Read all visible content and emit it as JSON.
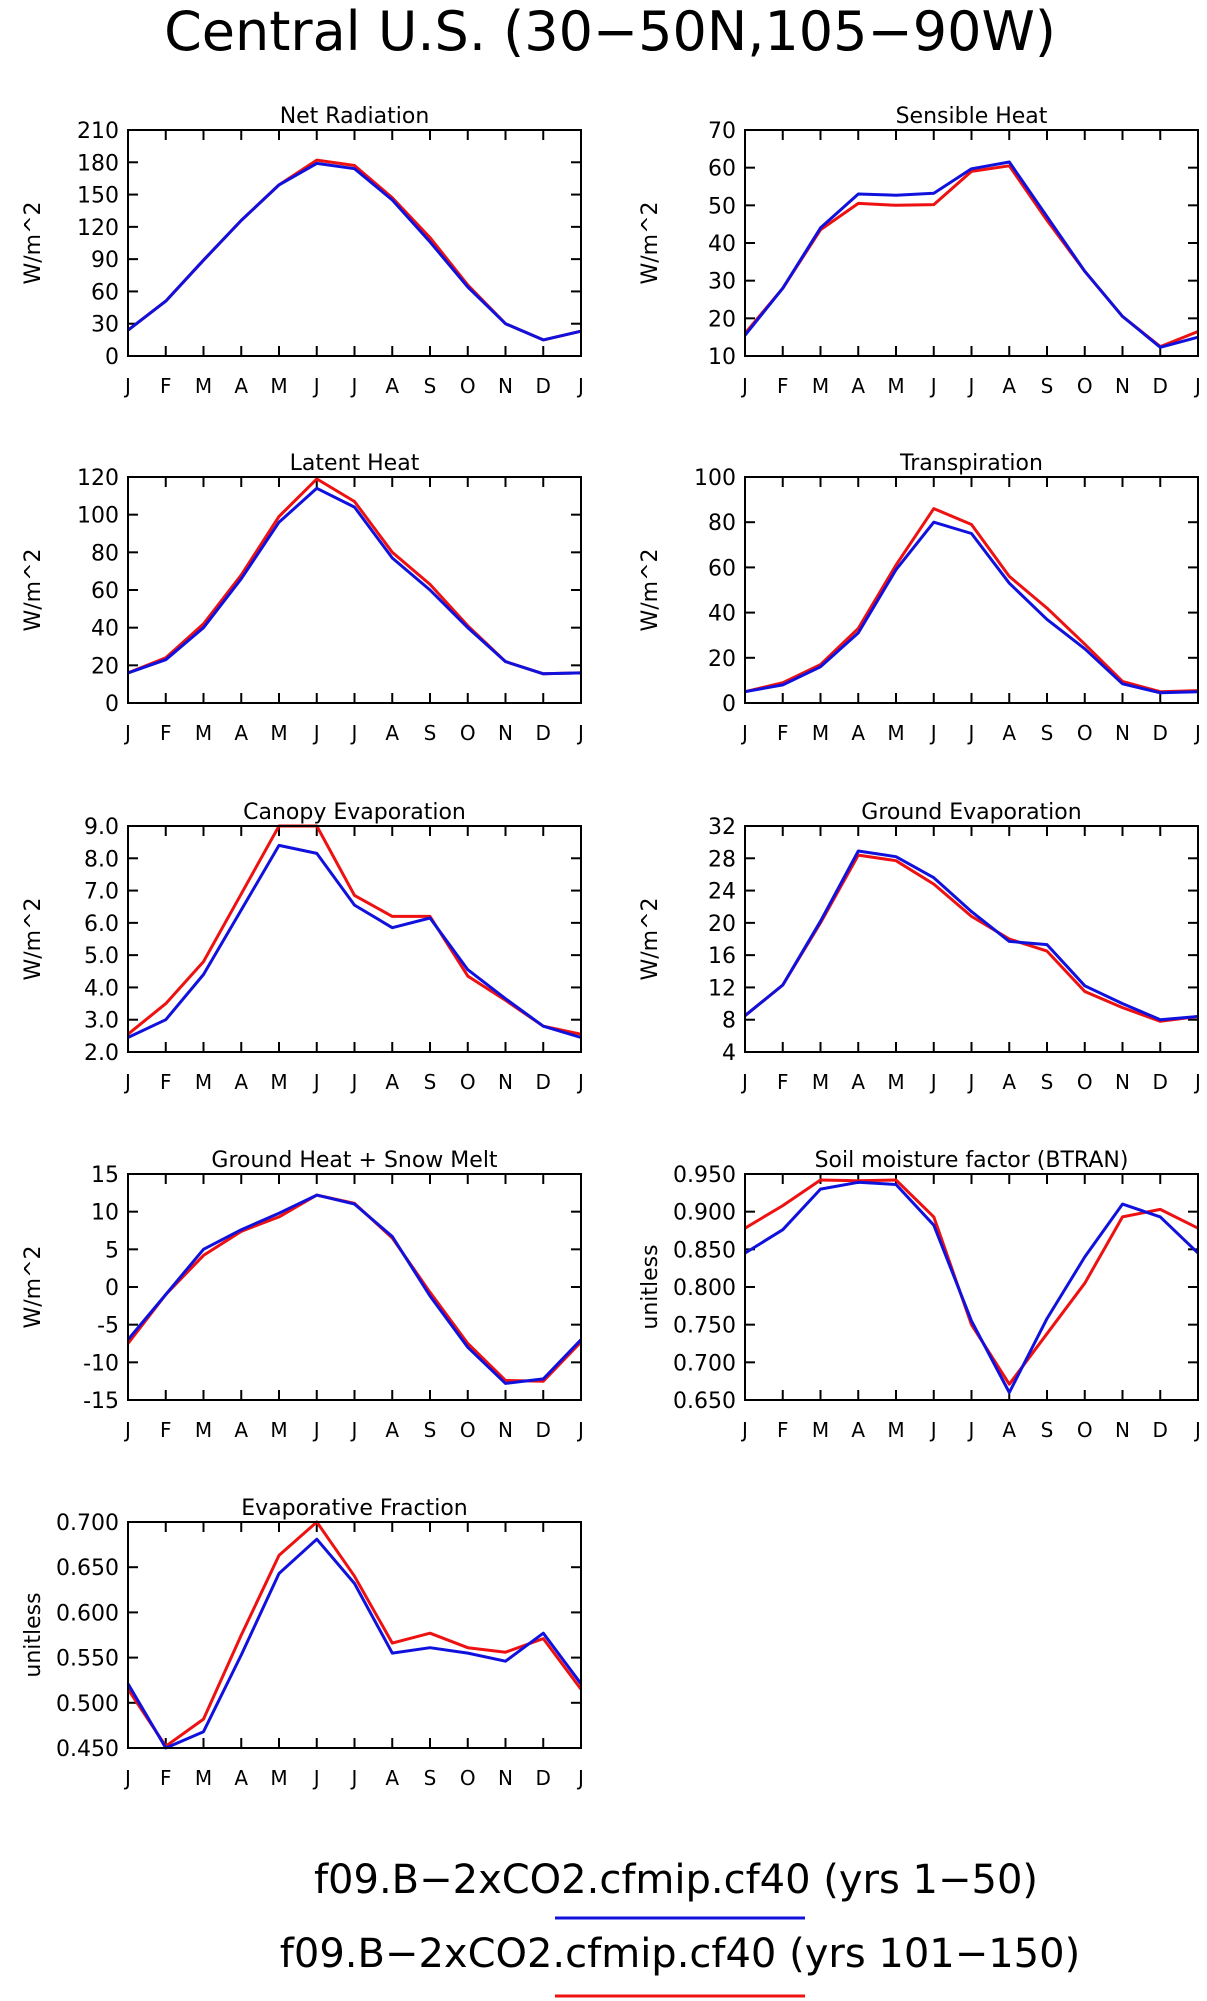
{
  "title": "Central U.S. (30−50N,105−90W)",
  "colors": {
    "series_1_50": "#1111dd",
    "series_101_150": "#ee1111",
    "axis": "#000000"
  },
  "legend": [
    {
      "label": "f09.B−2xCO2.cfmip.cf40 (yrs 1−50)",
      "color": "#1111dd"
    },
    {
      "label": "f09.B−2xCO2.cfmip.cf40 (yrs 101−150)",
      "color": "#ee1111"
    }
  ],
  "chart_data": [
    {
      "type": "line",
      "title": "Net Radiation",
      "ylabel": "W/m^2",
      "categories": [
        "J",
        "F",
        "M",
        "A",
        "M",
        "J",
        "J",
        "A",
        "S",
        "O",
        "N",
        "D",
        "J"
      ],
      "ylim": [
        0,
        210
      ],
      "yticks": [
        "0",
        "30",
        "60",
        "90",
        "120",
        "150",
        "180",
        "210"
      ],
      "series": [
        {
          "name": "f09.B−2xCO2.cfmip.cf40 (yrs 101−150)",
          "color": "#ee1111",
          "values": [
            24,
            51,
            89,
            126,
            159,
            182,
            177,
            147,
            110,
            66,
            30,
            15,
            23
          ]
        },
        {
          "name": "f09.B−2xCO2.cfmip.cf40 (yrs 1−50)",
          "color": "#1111dd",
          "values": [
            24,
            51,
            89,
            126,
            159,
            179,
            174,
            145,
            106,
            64,
            30,
            15,
            23
          ]
        }
      ]
    },
    {
      "type": "line",
      "title": "Sensible Heat",
      "ylabel": "W/m^2",
      "categories": [
        "J",
        "F",
        "M",
        "A",
        "M",
        "J",
        "J",
        "A",
        "S",
        "O",
        "N",
        "D",
        "J"
      ],
      "ylim": [
        10,
        70
      ],
      "yticks": [
        "10",
        "20",
        "30",
        "40",
        "50",
        "60",
        "70"
      ],
      "series": [
        {
          "name": "f09.B−2xCO2.cfmip.cf40 (yrs 101−150)",
          "color": "#ee1111",
          "values": [
            16,
            28,
            43.5,
            50.5,
            50,
            50.2,
            59,
            60.5,
            46,
            32.5,
            20.5,
            12.5,
            16.5
          ]
        },
        {
          "name": "f09.B−2xCO2.cfmip.cf40 (yrs 1−50)",
          "color": "#1111dd",
          "values": [
            15.5,
            28,
            44,
            53,
            52.7,
            53.2,
            59.7,
            61.5,
            47,
            32.5,
            20.5,
            12.3,
            15
          ]
        }
      ]
    },
    {
      "type": "line",
      "title": "Latent Heat",
      "ylabel": "W/m^2",
      "categories": [
        "J",
        "F",
        "M",
        "A",
        "M",
        "J",
        "J",
        "A",
        "S",
        "O",
        "N",
        "D",
        "J"
      ],
      "ylim": [
        0,
        120
      ],
      "yticks": [
        "0",
        "20",
        "40",
        "60",
        "80",
        "100",
        "120"
      ],
      "series": [
        {
          "name": "f09.B−2xCO2.cfmip.cf40 (yrs 101−150)",
          "color": "#ee1111",
          "values": [
            16,
            24,
            42,
            68,
            99,
            119,
            107,
            80,
            63,
            41,
            22,
            15.5,
            16
          ]
        },
        {
          "name": "f09.B−2xCO2.cfmip.cf40 (yrs 1−50)",
          "color": "#1111dd",
          "values": [
            16,
            23,
            40,
            66,
            96,
            114,
            104,
            77,
            60,
            40,
            22,
            15.5,
            16
          ]
        }
      ]
    },
    {
      "type": "line",
      "title": "Transpiration",
      "ylabel": "W/m^2",
      "categories": [
        "J",
        "F",
        "M",
        "A",
        "M",
        "J",
        "J",
        "A",
        "S",
        "O",
        "N",
        "D",
        "J"
      ],
      "ylim": [
        0,
        100
      ],
      "yticks": [
        "0",
        "20",
        "40",
        "60",
        "80",
        "100"
      ],
      "series": [
        {
          "name": "f09.B−2xCO2.cfmip.cf40 (yrs 101−150)",
          "color": "#ee1111",
          "values": [
            5,
            9,
            17,
            33,
            61,
            86,
            79,
            56,
            42,
            26,
            9.5,
            5,
            5.5
          ]
        },
        {
          "name": "f09.B−2xCO2.cfmip.cf40 (yrs 1−50)",
          "color": "#1111dd",
          "values": [
            5,
            8,
            16,
            31,
            59,
            80,
            75,
            53,
            37,
            24,
            8.5,
            4.5,
            5
          ]
        }
      ]
    },
    {
      "type": "line",
      "title": "Canopy Evaporation",
      "ylabel": "W/m^2",
      "categories": [
        "J",
        "F",
        "M",
        "A",
        "M",
        "J",
        "J",
        "A",
        "S",
        "O",
        "N",
        "D",
        "J"
      ],
      "ylim": [
        2.0,
        9.0
      ],
      "yticks": [
        "2.0",
        "3.0",
        "4.0",
        "5.0",
        "6.0",
        "7.0",
        "8.0",
        "9.0"
      ],
      "series": [
        {
          "name": "f09.B−2xCO2.cfmip.cf40 (yrs 101−150)",
          "color": "#ee1111",
          "values": [
            2.55,
            3.5,
            4.8,
            6.9,
            9.0,
            9.0,
            6.85,
            6.2,
            6.2,
            4.35,
            3.6,
            2.8,
            2.55
          ]
        },
        {
          "name": "f09.B−2xCO2.cfmip.cf40 (yrs 1−50)",
          "color": "#1111dd",
          "values": [
            2.45,
            3.0,
            4.4,
            6.4,
            8.4,
            8.15,
            6.55,
            5.85,
            6.15,
            4.55,
            3.65,
            2.8,
            2.45
          ]
        }
      ]
    },
    {
      "type": "line",
      "title": "Ground Evaporation",
      "ylabel": "W/m^2",
      "categories": [
        "J",
        "F",
        "M",
        "A",
        "M",
        "J",
        "J",
        "A",
        "S",
        "O",
        "N",
        "D",
        "J"
      ],
      "ylim": [
        4,
        32
      ],
      "yticks": [
        "4",
        "8",
        "12",
        "16",
        "20",
        "24",
        "28",
        "32"
      ],
      "series": [
        {
          "name": "f09.B−2xCO2.cfmip.cf40 (yrs 101−150)",
          "color": "#ee1111",
          "values": [
            8.5,
            12.3,
            20,
            28.4,
            27.7,
            24.8,
            20.8,
            18,
            16.5,
            11.5,
            9.5,
            7.8,
            8.4
          ]
        },
        {
          "name": "f09.B−2xCO2.cfmip.cf40 (yrs 1−50)",
          "color": "#1111dd",
          "values": [
            8.5,
            12.3,
            20.2,
            28.9,
            28.2,
            25.6,
            21.4,
            17.7,
            17.3,
            12.2,
            10,
            8,
            8.4
          ]
        }
      ]
    },
    {
      "type": "line",
      "title": "Ground Heat + Snow Melt",
      "ylabel": "W/m^2",
      "categories": [
        "J",
        "F",
        "M",
        "A",
        "M",
        "J",
        "J",
        "A",
        "S",
        "O",
        "N",
        "D",
        "J"
      ],
      "ylim": [
        -15,
        15
      ],
      "yticks": [
        "-15",
        "-10",
        "-5",
        "0",
        "5",
        "10",
        "15"
      ],
      "series": [
        {
          "name": "f09.B−2xCO2.cfmip.cf40 (yrs 101−150)",
          "color": "#ee1111",
          "values": [
            -7.5,
            -1,
            4.2,
            7.4,
            9.3,
            12.2,
            11.1,
            6.5,
            -0.7,
            -7.5,
            -12.4,
            -12.5,
            -7.3
          ]
        },
        {
          "name": "f09.B−2xCO2.cfmip.cf40 (yrs 1−50)",
          "color": "#1111dd",
          "values": [
            -7,
            -1,
            5,
            7.6,
            9.8,
            12.2,
            11,
            6.7,
            -1.2,
            -8,
            -12.8,
            -12.2,
            -7
          ]
        }
      ]
    },
    {
      "type": "line",
      "title": "Soil moisture factor (BTRAN)",
      "ylabel": "unitless",
      "categories": [
        "J",
        "F",
        "M",
        "A",
        "M",
        "J",
        "J",
        "A",
        "S",
        "O",
        "N",
        "D",
        "J"
      ],
      "ylim": [
        0.65,
        0.95
      ],
      "yticks": [
        "0.650",
        "0.700",
        "0.750",
        "0.800",
        "0.850",
        "0.900",
        "0.950"
      ],
      "series": [
        {
          "name": "f09.B−2xCO2.cfmip.cf40 (yrs 101−150)",
          "color": "#ee1111",
          "values": [
            0.878,
            0.908,
            0.942,
            0.941,
            0.942,
            0.893,
            0.75,
            0.671,
            0.738,
            0.805,
            0.893,
            0.903,
            0.878
          ]
        },
        {
          "name": "f09.B−2xCO2.cfmip.cf40 (yrs 1−50)",
          "color": "#1111dd",
          "values": [
            0.845,
            0.876,
            0.93,
            0.939,
            0.936,
            0.882,
            0.755,
            0.66,
            0.758,
            0.84,
            0.91,
            0.893,
            0.845
          ]
        }
      ]
    },
    {
      "type": "line",
      "title": "Evaporative Fraction",
      "ylabel": "unitless",
      "categories": [
        "J",
        "F",
        "M",
        "A",
        "M",
        "J",
        "J",
        "A",
        "S",
        "O",
        "N",
        "D",
        "J"
      ],
      "ylim": [
        0.45,
        0.7
      ],
      "yticks": [
        "0.450",
        "0.500",
        "0.550",
        "0.600",
        "0.650",
        "0.700"
      ],
      "series": [
        {
          "name": "f09.B−2xCO2.cfmip.cf40 (yrs 101−150)",
          "color": "#ee1111",
          "values": [
            0.515,
            0.452,
            0.482,
            0.575,
            0.663,
            0.704,
            0.64,
            0.566,
            0.577,
            0.561,
            0.556,
            0.571,
            0.515
          ]
        },
        {
          "name": "f09.B−2xCO2.cfmip.cf40 (yrs 1−50)",
          "color": "#1111dd",
          "values": [
            0.521,
            0.45,
            0.468,
            0.553,
            0.643,
            0.681,
            0.632,
            0.555,
            0.561,
            0.555,
            0.546,
            0.577,
            0.521
          ]
        }
      ]
    }
  ]
}
